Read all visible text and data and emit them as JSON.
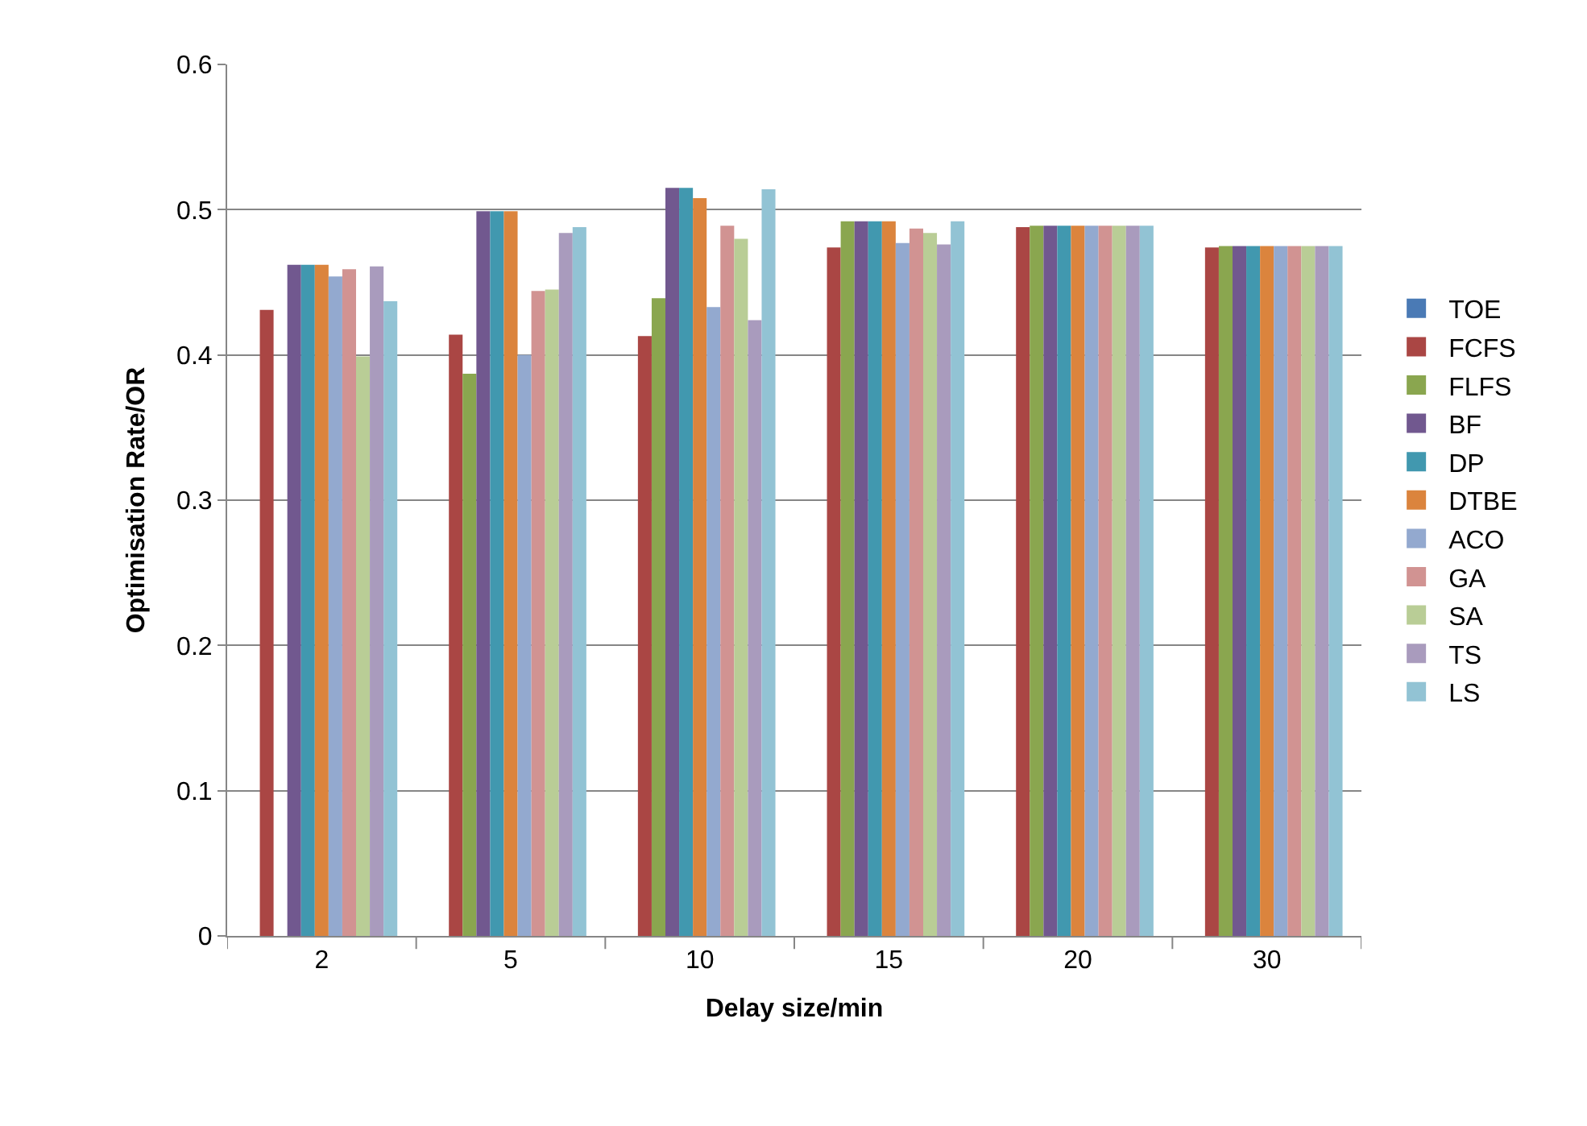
{
  "chart_data": {
    "type": "bar",
    "xlabel": "Delay size/min",
    "ylabel": "Optimisation Rate/OR",
    "categories": [
      "2",
      "5",
      "10",
      "15",
      "20",
      "30"
    ],
    "series": [
      {
        "name": "TOE",
        "color": "#4a7ab5",
        "values": [
          null,
          null,
          null,
          null,
          null,
          null
        ]
      },
      {
        "name": "FCFS",
        "color": "#aa4644",
        "values": [
          0.431,
          0.414,
          0.413,
          0.474,
          0.488,
          0.474
        ]
      },
      {
        "name": "FLFS",
        "color": "#8aa64f",
        "values": [
          null,
          0.387,
          0.439,
          0.492,
          0.489,
          0.475
        ]
      },
      {
        "name": "BF",
        "color": "#71588f",
        "values": [
          0.462,
          0.499,
          0.515,
          0.492,
          0.489,
          0.475
        ]
      },
      {
        "name": "DP",
        "color": "#4198af",
        "values": [
          0.462,
          0.499,
          0.515,
          0.492,
          0.489,
          0.475
        ]
      },
      {
        "name": "DTBE",
        "color": "#db843d",
        "values": [
          0.462,
          0.499,
          0.508,
          0.492,
          0.489,
          0.475
        ]
      },
      {
        "name": "ACO",
        "color": "#93a9cf",
        "values": [
          0.454,
          0.4,
          0.433,
          0.477,
          0.489,
          0.475
        ]
      },
      {
        "name": "GA",
        "color": "#d19392",
        "values": [
          0.459,
          0.444,
          0.489,
          0.487,
          0.489,
          0.475
        ]
      },
      {
        "name": "SA",
        "color": "#b9cd96",
        "values": [
          0.399,
          0.445,
          0.48,
          0.484,
          0.489,
          0.475
        ]
      },
      {
        "name": "TS",
        "color": "#a99bbd",
        "values": [
          0.461,
          0.484,
          0.424,
          0.476,
          0.489,
          0.475
        ]
      },
      {
        "name": "LS",
        "color": "#92c3d4",
        "values": [
          0.437,
          0.488,
          0.514,
          0.492,
          0.489,
          0.475
        ]
      }
    ],
    "ylim": [
      0,
      0.6
    ],
    "yticks": [
      0,
      0.1,
      0.2,
      0.3,
      0.4,
      0.5,
      0.6
    ],
    "grid": "y",
    "legend": "right"
  }
}
